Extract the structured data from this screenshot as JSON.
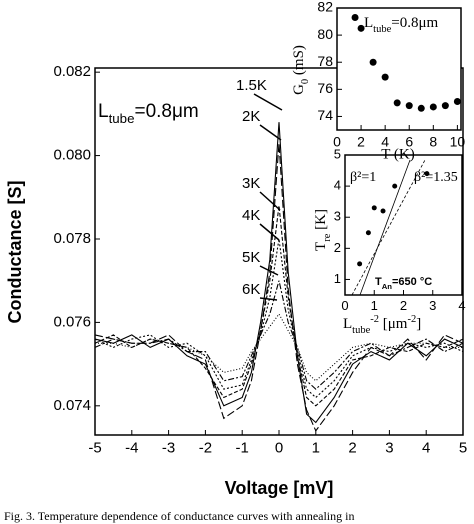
{
  "chart_data": [
    {
      "type": "line",
      "xlabel": "Voltage [mV]",
      "ylabel": "Conductance [S]",
      "annotation_parts": [
        "L",
        "tube",
        "=0.8μm"
      ],
      "x": [
        -5,
        -4.5,
        -4,
        -3.5,
        -3,
        -2.5,
        -2,
        -1.5,
        -1,
        -0.75,
        -0.5,
        -0.25,
        0,
        0.25,
        0.5,
        0.75,
        1,
        1.5,
        2,
        2.5,
        3,
        3.5,
        4,
        4.5,
        5
      ],
      "series": [
        {
          "name": "1.5K",
          "color": "#000000",
          "values": [
            0.0756,
            0.0755,
            0.0757,
            0.0754,
            0.0756,
            0.0752,
            0.075,
            0.074,
            0.0742,
            0.0748,
            0.076,
            0.0775,
            0.0808,
            0.0772,
            0.0752,
            0.0738,
            0.0736,
            0.0742,
            0.075,
            0.0753,
            0.0751,
            0.0755,
            0.0752,
            0.0756,
            0.0754
          ]
        },
        {
          "name": "2K",
          "color": "#000000",
          "values": [
            0.0757,
            0.0756,
            0.0755,
            0.0755,
            0.0757,
            0.0753,
            0.0751,
            0.0737,
            0.074,
            0.0746,
            0.0758,
            0.0772,
            0.0803,
            0.0768,
            0.075,
            0.0739,
            0.0734,
            0.074,
            0.0748,
            0.0754,
            0.0752,
            0.0756,
            0.0751,
            0.0757,
            0.0755
          ]
        },
        {
          "name": "3K",
          "color": "#000000",
          "values": [
            0.0755,
            0.0757,
            0.0754,
            0.0756,
            0.0755,
            0.0754,
            0.0749,
            0.0742,
            0.0744,
            0.075,
            0.0758,
            0.077,
            0.0788,
            0.0766,
            0.0752,
            0.0742,
            0.074,
            0.0744,
            0.0751,
            0.0752,
            0.0754,
            0.0753,
            0.0755,
            0.0754,
            0.0756
          ]
        },
        {
          "name": "4K",
          "color": "#000000",
          "values": [
            0.0756,
            0.0754,
            0.0756,
            0.0757,
            0.0754,
            0.0755,
            0.0752,
            0.0744,
            0.0745,
            0.0751,
            0.0757,
            0.0766,
            0.078,
            0.0763,
            0.0753,
            0.0744,
            0.0742,
            0.0746,
            0.0752,
            0.0754,
            0.0753,
            0.0755,
            0.0754,
            0.0755,
            0.0753
          ]
        },
        {
          "name": "5K",
          "color": "#000000",
          "values": [
            0.0754,
            0.0756,
            0.0755,
            0.0755,
            0.0756,
            0.0753,
            0.0753,
            0.0746,
            0.0747,
            0.0752,
            0.0757,
            0.0762,
            0.077,
            0.076,
            0.0754,
            0.0746,
            0.0744,
            0.0748,
            0.0753,
            0.0755,
            0.0752,
            0.0754,
            0.0756,
            0.0753,
            0.0755
          ]
        },
        {
          "name": "6K",
          "color": "#000000",
          "values": [
            0.0755,
            0.0755,
            0.0754,
            0.0756,
            0.0755,
            0.0754,
            0.0752,
            0.0748,
            0.0749,
            0.0753,
            0.0756,
            0.0759,
            0.0762,
            0.0758,
            0.0754,
            0.0748,
            0.0746,
            0.075,
            0.0754,
            0.0755,
            0.0754,
            0.0755,
            0.0755,
            0.0754,
            0.0754
          ]
        }
      ],
      "xlim": [
        -5,
        5
      ],
      "xticks": [
        -5,
        -4,
        -3,
        -2,
        -1,
        0,
        1,
        2,
        3,
        4,
        5
      ],
      "ylim": [
        0.0733,
        0.0821
      ],
      "yticks": [
        0.074,
        0.076,
        0.078,
        {
          "value": 0.08,
          "label": "0.080"
        },
        0.082
      ]
    },
    {
      "type": "scatter",
      "xlabel": "T (K)",
      "ylabel_parts": [
        "G",
        "0",
        " (mS)"
      ],
      "annotation_parts": [
        "L",
        "tube",
        "=0.8μm"
      ],
      "color": "#000000",
      "x": [
        1.5,
        2,
        3,
        4,
        5,
        6,
        7,
        8,
        9,
        10
      ],
      "values": [
        81.3,
        80.5,
        78,
        76.9,
        75,
        74.8,
        74.6,
        74.7,
        74.8,
        75.1
      ],
      "xlim": [
        0,
        10.3
      ],
      "xticks": [
        0,
        2,
        4,
        6,
        8,
        10
      ],
      "ylim": [
        73,
        82
      ],
      "yticks": [
        74,
        76,
        78,
        80,
        82
      ]
    },
    {
      "type": "scatter",
      "xlabel_parts": [
        "L",
        "tube",
        "-2",
        " [μm",
        "-2",
        "]"
      ],
      "ylabel_parts": [
        "T",
        "re",
        " [K]"
      ],
      "fit_labels": [
        "β²=1",
        "β²=1.35"
      ],
      "note_parts": [
        "T",
        "An",
        "=650 °C"
      ],
      "color": "#000000",
      "x": [
        0.5,
        0.8,
        1.0,
        1.3,
        1.7,
        2.8
      ],
      "values": [
        1.5,
        2.5,
        3.3,
        3.2,
        4.0,
        4.4
      ],
      "xlim": [
        0,
        4
      ],
      "xticks": [
        0,
        1,
        2,
        3,
        4
      ],
      "ylim": [
        0.5,
        5
      ],
      "yticks": [
        1,
        2,
        3,
        4,
        5
      ]
    }
  ],
  "caption": "Fig. 3. Temperature dependence of conductance curves with annealing in"
}
